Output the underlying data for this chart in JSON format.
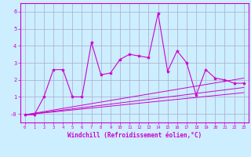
{
  "xlabel": "Windchill (Refroidissement éolien,°C)",
  "bg_color": "#cceeff",
  "grid_color": "#aaaacc",
  "line_color": "#cc00cc",
  "xlim": [
    -0.5,
    23.5
  ],
  "ylim": [
    -0.5,
    6.5
  ],
  "xticks": [
    0,
    1,
    2,
    3,
    4,
    5,
    6,
    7,
    8,
    9,
    10,
    11,
    12,
    13,
    14,
    15,
    16,
    17,
    18,
    19,
    20,
    21,
    22,
    23
  ],
  "yticks": [
    0,
    1,
    2,
    3,
    4,
    5,
    6
  ],
  "ytick_labels": [
    "-0",
    "1",
    "2",
    "3",
    "4",
    "5",
    "6"
  ],
  "scatter_x": [
    0,
    1,
    2,
    3,
    4,
    5,
    6,
    7,
    8,
    9,
    10,
    11,
    12,
    13,
    14,
    15,
    16,
    17,
    18,
    19,
    20,
    21,
    22,
    23
  ],
  "scatter_y": [
    -0.05,
    -0.05,
    1.0,
    2.6,
    2.6,
    1.0,
    1.0,
    4.2,
    2.3,
    2.4,
    3.2,
    3.5,
    3.4,
    3.3,
    5.9,
    2.5,
    3.7,
    3.0,
    1.1,
    2.6,
    2.1,
    2.0,
    1.8,
    1.8
  ],
  "line1_x": [
    0,
    23
  ],
  "line1_y": [
    -0.05,
    1.55
  ],
  "line2_x": [
    0,
    23
  ],
  "line2_y": [
    -0.05,
    1.25
  ],
  "line3_x": [
    0,
    23
  ],
  "line3_y": [
    -0.05,
    2.1
  ]
}
